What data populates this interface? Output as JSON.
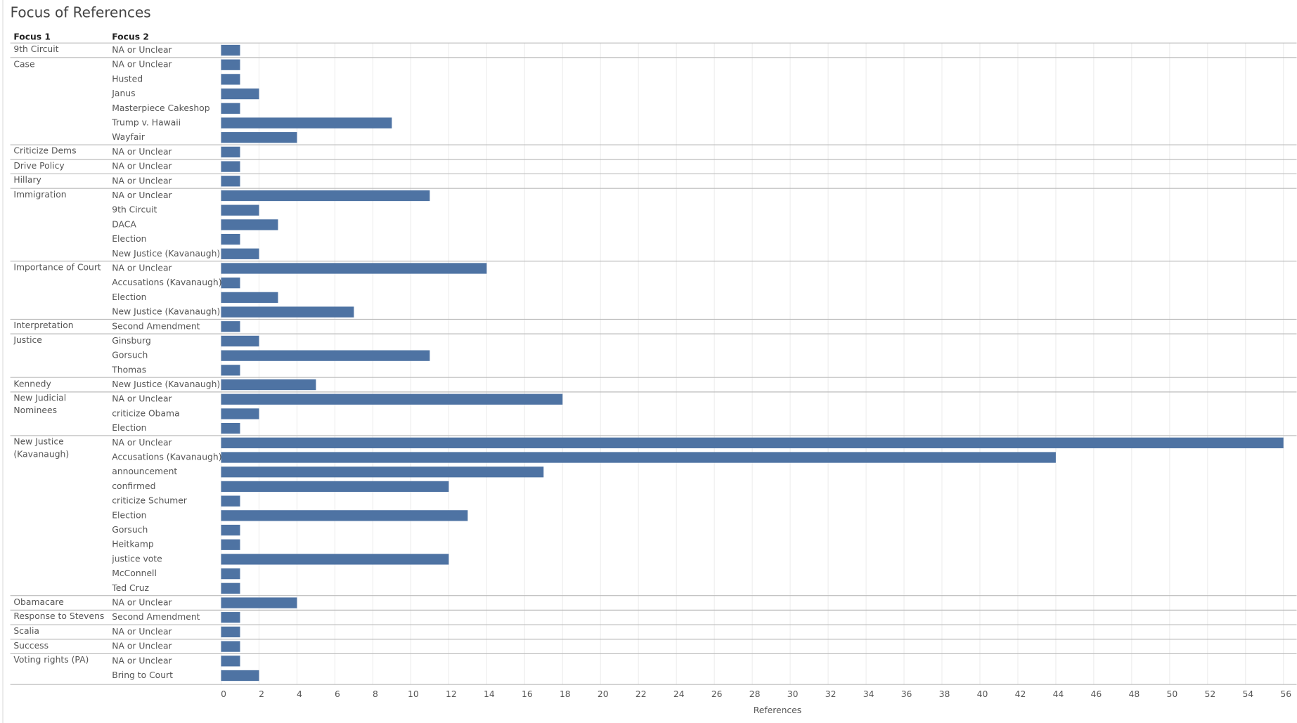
{
  "chart_data": {
    "type": "grouped-bar",
    "title": "Focus of References",
    "row_headers": [
      "Focus 1",
      "Focus 2"
    ],
    "x_label": "References",
    "color": "#4e73a3",
    "xlim": [
      0,
      57
    ],
    "xticks": [
      0,
      2,
      4,
      6,
      8,
      10,
      12,
      14,
      16,
      18,
      20,
      22,
      24,
      26,
      28,
      30,
      32,
      34,
      36,
      38,
      40,
      42,
      44,
      46,
      48,
      50,
      52,
      54,
      56
    ],
    "grid": true,
    "groups": [
      {
        "name": "9th Circuit",
        "categories": [
          "NA or Unclear"
        ],
        "values": [
          1
        ]
      },
      {
        "name": "Case",
        "categories": [
          "NA or Unclear",
          "Husted",
          "Janus",
          "Masterpiece Cakeshop",
          "Trump v. Hawaii",
          "Wayfair"
        ],
        "values": [
          1,
          1,
          2,
          1,
          9,
          4
        ]
      },
      {
        "name": "Criticize Dems",
        "categories": [
          "NA or Unclear"
        ],
        "values": [
          1
        ]
      },
      {
        "name": "Drive Policy",
        "categories": [
          "NA or Unclear"
        ],
        "values": [
          1
        ]
      },
      {
        "name": "Hillary",
        "categories": [
          "NA or Unclear"
        ],
        "values": [
          1
        ]
      },
      {
        "name": "Immigration",
        "categories": [
          "NA or Unclear",
          "9th Circuit",
          "DACA",
          "Election",
          "New Justice (Kavanaugh)"
        ],
        "values": [
          11,
          2,
          3,
          1,
          2
        ]
      },
      {
        "name": "Importance of Court",
        "categories": [
          "NA or Unclear",
          "Accusations (Kavanaugh)",
          "Election",
          "New Justice (Kavanaugh)"
        ],
        "values": [
          14,
          1,
          3,
          7
        ]
      },
      {
        "name": "Interpretation",
        "categories": [
          "Second Amendment"
        ],
        "values": [
          1
        ]
      },
      {
        "name": "Justice",
        "categories": [
          "Ginsburg",
          "Gorsuch",
          "Thomas"
        ],
        "values": [
          2,
          11,
          1
        ]
      },
      {
        "name": "Kennedy",
        "categories": [
          "New Justice (Kavanaugh)"
        ],
        "values": [
          5
        ]
      },
      {
        "name": "New Judicial Nominees",
        "categories": [
          "NA or Unclear",
          "criticize Obama",
          "Election"
        ],
        "values": [
          18,
          2,
          1
        ]
      },
      {
        "name": "New Justice (Kavanaugh)",
        "categories": [
          "NA or Unclear",
          "Accusations (Kavanaugh)",
          "announcement",
          "confirmed",
          "criticize Schumer",
          "Election",
          "Gorsuch",
          "Heitkamp",
          "justice vote",
          "McConnell",
          "Ted Cruz"
        ],
        "values": [
          56,
          44,
          17,
          12,
          1,
          13,
          1,
          1,
          12,
          1,
          1
        ]
      },
      {
        "name": "Obamacare",
        "categories": [
          "NA or Unclear"
        ],
        "values": [
          4
        ]
      },
      {
        "name": "Response to Stevens",
        "categories": [
          "Second Amendment"
        ],
        "values": [
          1
        ]
      },
      {
        "name": "Scalia",
        "categories": [
          "NA or Unclear"
        ],
        "values": [
          1
        ]
      },
      {
        "name": "Success",
        "categories": [
          "NA or Unclear"
        ],
        "values": [
          1
        ]
      },
      {
        "name": "Voting rights (PA)",
        "categories": [
          "NA or Unclear",
          "Bring to Court"
        ],
        "values": [
          1,
          2
        ]
      }
    ]
  }
}
